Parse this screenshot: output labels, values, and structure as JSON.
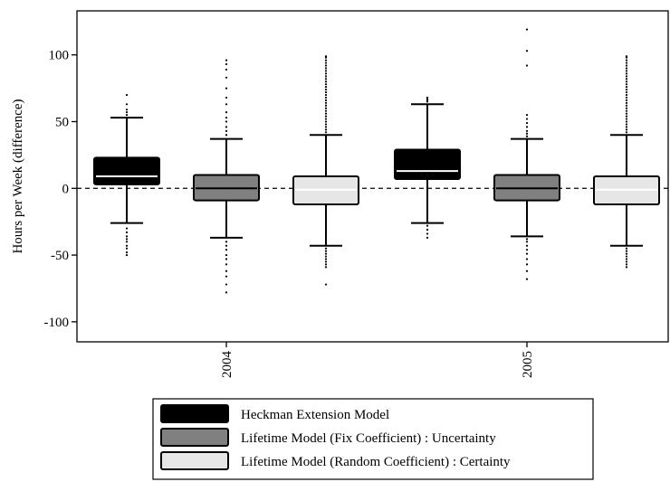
{
  "chart_data": {
    "type": "box",
    "ylabel": "Hours per Week (difference)",
    "xlabel": "",
    "ylim": [
      -115,
      133
    ],
    "yticks": [
      -100,
      -50,
      0,
      50,
      100
    ],
    "ytick_labels": [
      "-100",
      "-50",
      "0",
      "50",
      "100"
    ],
    "reference_line": 0,
    "categories": [
      "2004",
      "2005"
    ],
    "legend_position": "bottom-center",
    "series": [
      {
        "name": "Heckman Extension Model",
        "color": "#000000",
        "median_color": "#ffffff",
        "boxes": [
          {
            "category": "2004",
            "whisker_low": -26,
            "q1": 3,
            "median": 9,
            "q3": 23,
            "whisker_high": 53,
            "outliers": [
              55,
              57,
              59,
              63,
              70,
              -30,
              -33,
              -36,
              -38,
              -40,
              -43,
              -45,
              -48,
              -50
            ]
          },
          {
            "category": "2005",
            "whisker_low": -26,
            "q1": 7,
            "median": 13,
            "q3": 29,
            "whisker_high": 63,
            "outliers": [
              65,
              66,
              67,
              68,
              -28,
              -31,
              -34,
              -37
            ]
          }
        ]
      },
      {
        "name": "Lifetime Model (Fix Coefficient) : Uncertainty",
        "color": "#808080",
        "median_color": "#000000",
        "boxes": [
          {
            "category": "2004",
            "whisker_low": -37,
            "q1": -9,
            "median": 0,
            "q3": 10,
            "whisker_high": 37,
            "outliers": [
              40,
              43,
              46,
              50,
              53,
              57,
              63,
              68,
              75,
              83,
              89,
              93,
              96,
              -40,
              -43,
              -46,
              -50,
              -53,
              -57,
              -62,
              -66,
              -72,
              -78
            ]
          },
          {
            "category": "2005",
            "whisker_low": -36,
            "q1": -9,
            "median": 0,
            "q3": 10,
            "whisker_high": 37,
            "outliers": [
              39,
              41,
              43,
              46,
              49,
              52,
              55,
              92,
              103,
              119,
              -38,
              -40,
              -43,
              -46,
              -49,
              -53,
              -57,
              -62,
              -68
            ]
          }
        ]
      },
      {
        "name": "Lifetime Model (Random Coefficient) : Certainty",
        "color": "#e6e6e6",
        "median_color": "#ffffff",
        "boxes": [
          {
            "category": "2004",
            "whisker_low": -43,
            "q1": -12,
            "median": -1,
            "q3": 9,
            "whisker_high": 40,
            "outliers": [
              42,
              44,
              46,
              48,
              50,
              52,
              54,
              56,
              58,
              60,
              62,
              64,
              66,
              68,
              70,
              72,
              74,
              76,
              78,
              80,
              82,
              84,
              86,
              88,
              90,
              92,
              94,
              96,
              98,
              99,
              -45,
              -47,
              -49,
              -51,
              -53,
              -55,
              -57,
              -59,
              -72
            ]
          },
          {
            "category": "2005",
            "whisker_low": -43,
            "q1": -12,
            "median": -1,
            "q3": 9,
            "whisker_high": 40,
            "outliers": [
              42,
              44,
              46,
              48,
              50,
              52,
              54,
              56,
              58,
              60,
              62,
              64,
              66,
              68,
              70,
              72,
              74,
              76,
              78,
              80,
              82,
              84,
              86,
              88,
              90,
              92,
              94,
              96,
              98,
              99,
              -45,
              -47,
              -49,
              -51,
              -53,
              -55,
              -57,
              -59
            ]
          }
        ]
      }
    ]
  }
}
